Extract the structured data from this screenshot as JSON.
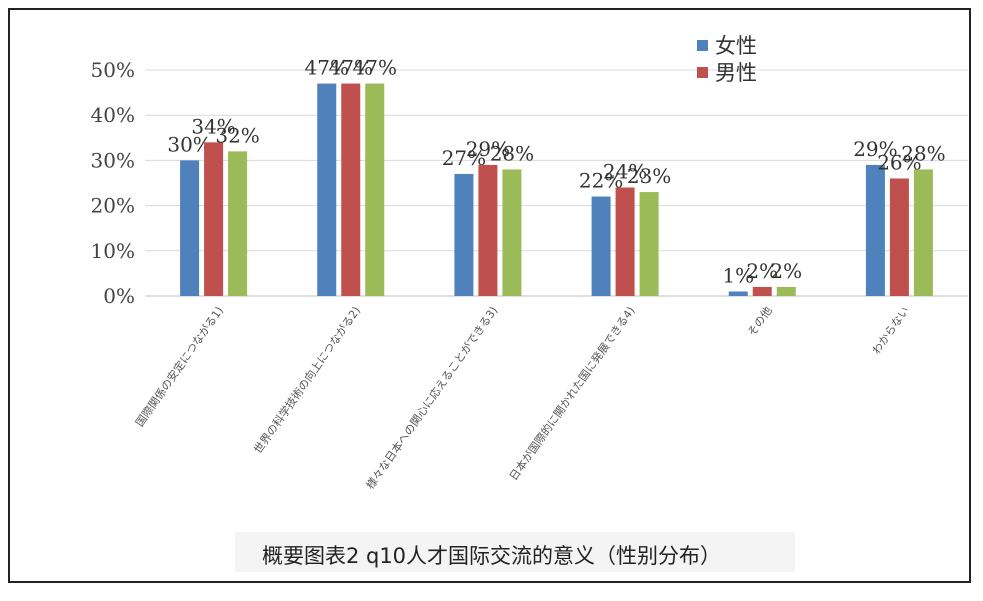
{
  "chart_data": {
    "type": "bar",
    "title": "概要图表2 q10人才国际交流的意义（性别分布）",
    "categories": [
      "国際関係の安定につながる1)",
      "世界の科学技術の向上につながる2)",
      "様々な日本への関心に応えることができる3)",
      "日本が国際的に開かれた国に発展できる4)",
      "その他",
      "わからない"
    ],
    "series": [
      {
        "name": "女性",
        "color": "#4F81BD",
        "values": [
          30,
          47,
          27,
          22,
          1,
          29
        ]
      },
      {
        "name": "男性",
        "color": "#C0504D",
        "values": [
          34,
          47,
          29,
          24,
          2,
          26
        ]
      },
      {
        "color": "#9BBB59",
        "values": [
          32,
          47,
          28,
          23,
          2,
          28
        ]
      }
    ],
    "data_labels": [
      [
        "30%",
        "47%",
        "27%",
        "22%",
        "1%",
        "29%"
      ],
      [
        "34%",
        "47%",
        "29%",
        "24%",
        "2%",
        "26%"
      ],
      [
        "32%",
        "47%",
        "28%",
        "23%",
        "2%",
        "28%"
      ]
    ],
    "ylim": [
      0,
      50
    ],
    "yticks": [
      0,
      10,
      20,
      30,
      40,
      50
    ],
    "ytick_labels": [
      "0%",
      "10%",
      "20%",
      "30%",
      "40%",
      "50%"
    ],
    "xlabel": "",
    "ylabel": "",
    "grid": true,
    "legend": {
      "position": "top-right",
      "entries": [
        "女性",
        "男性"
      ]
    }
  }
}
